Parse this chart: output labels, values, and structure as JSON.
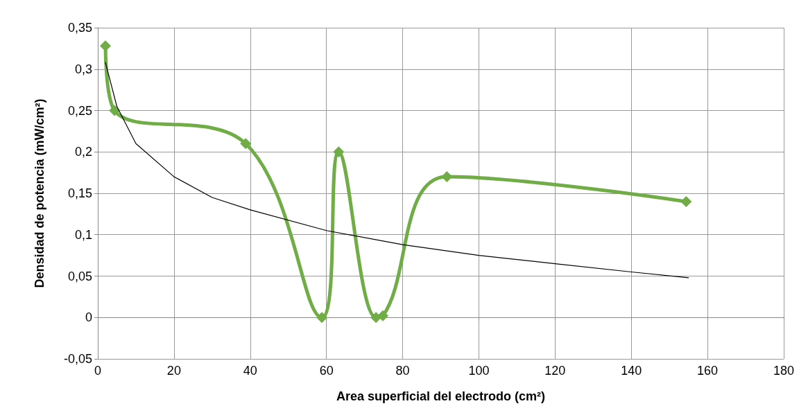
{
  "chart_data": {
    "type": "line",
    "xlabel": "Area superficial del electrodo (cm²)",
    "ylabel": "Densidad de potencia (mW/cm²)",
    "series": [
      {
        "color": "#70ad47",
        "marker": "diamond",
        "x": [
          2,
          4.4,
          38.8,
          58.8,
          63.2,
          73,
          74.8,
          91.6,
          154.4
        ],
        "values": [
          0.328,
          0.25,
          0.21,
          0,
          0.2,
          0,
          0.002,
          0.17,
          0.14
        ]
      },
      {
        "color": "#000000",
        "marker": "none",
        "x": [
          2,
          5,
          10,
          20,
          30,
          40,
          60,
          80,
          100,
          120,
          140,
          155
        ],
        "values": [
          0.308,
          0.255,
          0.21,
          0.17,
          0.145,
          0.13,
          0.105,
          0.088,
          0.075,
          0.065,
          0.055,
          0.048
        ]
      }
    ],
    "xlim": [
      0,
      180
    ],
    "xticks": [
      0,
      20,
      40,
      60,
      80,
      100,
      120,
      140,
      160,
      180
    ],
    "ylim": [
      -0.05,
      0.35
    ],
    "yticks": [
      {
        "value": -0.05,
        "label": "-0,05"
      },
      0,
      {
        "value": 0.05,
        "label": "0,05"
      },
      {
        "value": 0.1,
        "label": "0,1"
      },
      {
        "value": 0.15,
        "label": "0,15"
      },
      {
        "value": 0.2,
        "label": "0,2"
      },
      {
        "value": 0.25,
        "label": "0,25"
      },
      {
        "value": 0.3,
        "label": "0,3"
      },
      {
        "value": 0.35,
        "label": "0,35"
      }
    ],
    "grid": true
  }
}
